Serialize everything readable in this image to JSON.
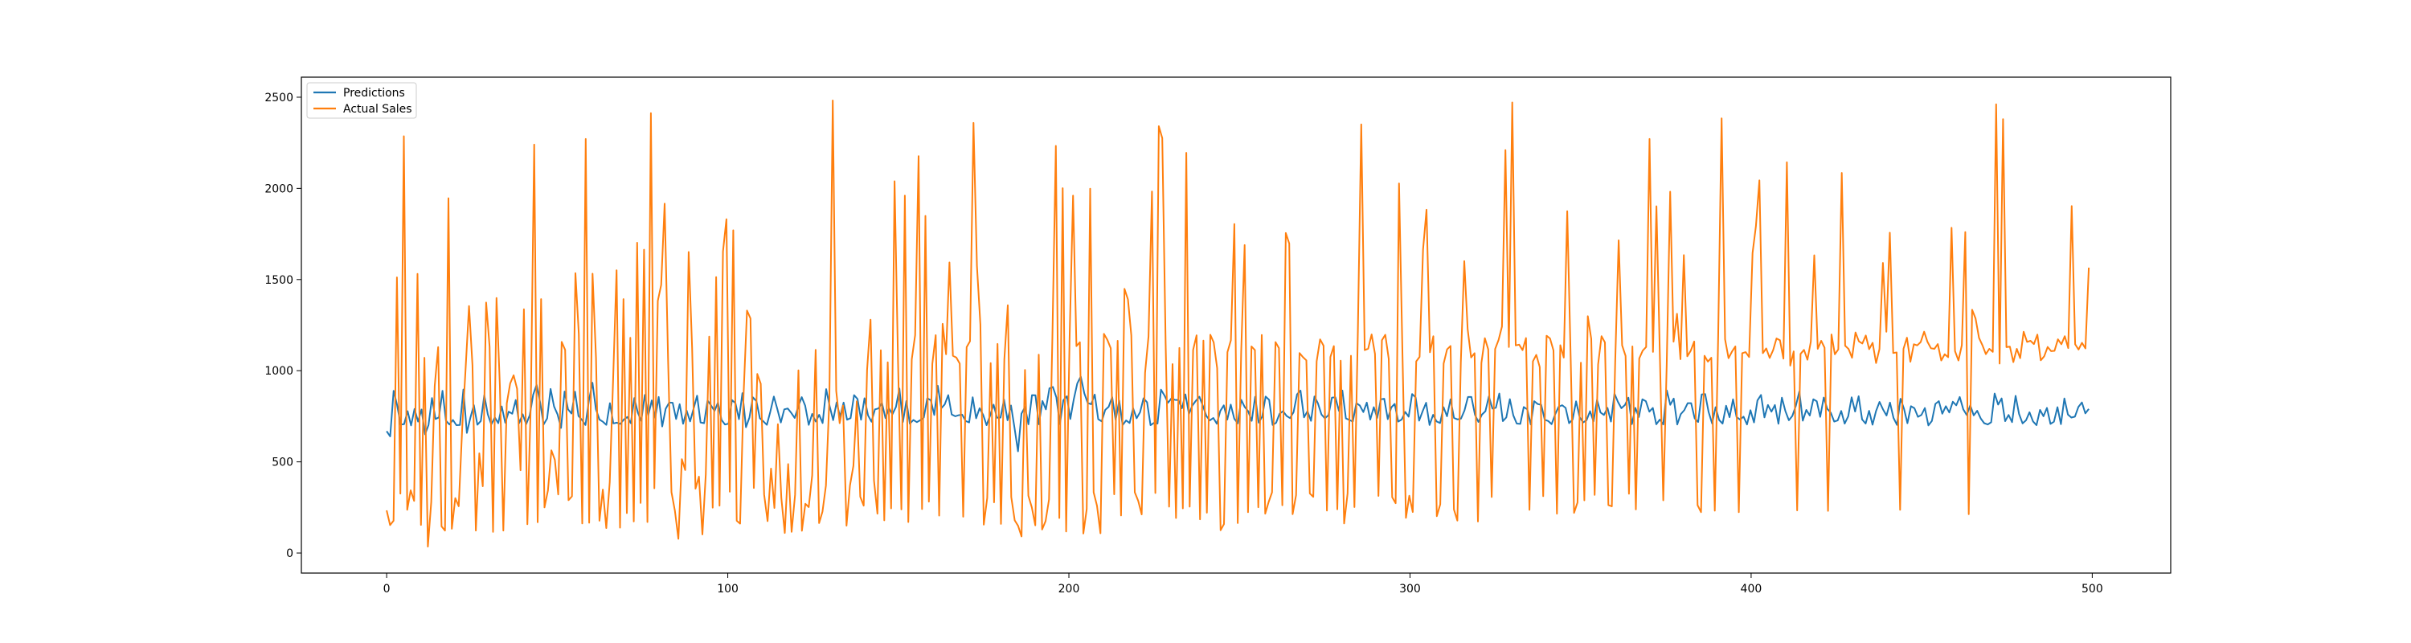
{
  "chart_data": {
    "type": "line",
    "title": "",
    "xlabel": "",
    "ylabel": "",
    "xlim": [
      -25,
      523
    ],
    "ylim": [
      -110,
      2610
    ],
    "xticks": [
      0,
      100,
      200,
      300,
      400,
      500
    ],
    "yticks": [
      0,
      500,
      1000,
      1500,
      2000,
      2500
    ],
    "grid": false,
    "legend": {
      "placement": "top-left",
      "entries": [
        "Predictions",
        "Actual Sales"
      ]
    },
    "colors": {
      "Predictions": "#1f77b4",
      "Actual Sales": "#ff7f0e"
    },
    "x_range": [
      0,
      499
    ],
    "series": [
      {
        "name": "Predictions",
        "values": [
          668,
          640,
          890,
          812,
          705,
          707,
          778,
          700,
          790,
          721,
          787,
          651,
          702,
          850,
          735,
          744,
          890,
          726,
          705,
          730,
          701,
          702,
          897,
          659,
          742,
          811,
          704,
          724,
          865,
          760,
          705,
          744,
          712,
          804,
          715,
          775,
          764,
          839,
          712,
          761,
          707,
          755,
          868,
          923,
          826,
          705,
          738,
          900,
          804,
          760,
          686,
          886,
          788,
          765,
          885,
          752,
          730,
          702,
          837,
          934,
          789,
          732,
          720,
          703,
          822,
          711,
          715,
          708,
          732,
          746,
          712,
          850,
          771,
          725,
          867,
          755,
          837,
          742,
          856,
          694,
          791,
          825,
          824,
          735,
          816,
          709,
          781,
          722,
          793,
          863,
          716,
          712,
          837,
          809,
          779,
          826,
          730,
          705,
          709,
          839,
          822,
          734,
          877,
          690,
          743,
          854,
          833,
          739,
          722,
          703,
          775,
          858,
          790,
          716,
          788,
          793,
          768,
          741,
          804,
          855,
          808,
          703,
          763,
          721,
          758,
          713,
          899,
          806,
          729,
          826,
          747,
          825,
          731,
          740,
          866,
          845,
          731,
          849,
          755,
          720,
          788,
          793,
          823,
          740,
          794,
          761,
          801,
          902,
          719,
          834,
          709,
          730,
          718,
          729,
          743,
          849,
          838,
          757,
          917,
          794,
          815,
          866,
          760,
          750,
          756,
          759,
          724,
          716,
          854,
          739,
          794,
          758,
          701,
          754,
          814,
          742,
          743,
          842,
          728,
          809,
          688,
          558,
          764,
          801,
          706,
          866,
          865,
          706,
          834,
          788,
          903,
          911,
          854,
          707,
          838,
          860,
          735,
          843,
          931,
          968,
          876,
          823,
          816,
          869,
          734,
          722,
          785,
          802,
          855,
          730,
          836,
          702,
          727,
          713,
          794,
          739,
          772,
          849,
          827,
          701,
          714,
          710,
          896,
          864,
          824,
          849,
          840,
          839,
          794,
          870,
          763,
          809,
          835,
          857,
          808,
          752,
          727,
          741,
          709,
          779,
          810,
          732,
          814,
          737,
          711,
          840,
          801,
          778,
          725,
          857,
          715,
          748,
          858,
          840,
          702,
          715,
          764,
          778,
          752,
          740,
          773,
          870,
          891,
          744,
          778,
          725,
          859,
          821,
          760,
          739,
          756,
          852,
          854,
          780,
          891,
          738,
          730,
          721,
          822,
          809,
          773,
          825,
          732,
          800,
          741,
          843,
          846,
          734,
          798,
          818,
          721,
          732,
          774,
          748,
          872,
          853,
          726,
          778,
          824,
          702,
          758,
          722,
          713,
          800,
          750,
          843,
          741,
          733,
          737,
          781,
          856,
          856,
          758,
          719,
          759,
          778,
          859,
          792,
          797,
          875,
          723,
          744,
          844,
          755,
          710,
          708,
          801,
          788,
          705,
          833,
          817,
          813,
          731,
          724,
          707,
          761,
          802,
          811,
          796,
          712,
          732,
          832,
          746,
          716,
          728,
          778,
          722,
          840,
          771,
          757,
          796,
          721,
          874,
          829,
          794,
          812,
          852,
          707,
          796,
          746,
          843,
          833,
          775,
          796,
          706,
          732,
          705,
          892,
          813,
          847,
          705,
          761,
          783,
          822,
          822,
          738,
          719,
          870,
          872,
          774,
          711,
          800,
          730,
          710,
          808,
          745,
          843,
          746,
          732,
          748,
          705,
          783,
          716,
          837,
          867,
          744,
          812,
          775,
          812,
          709,
          852,
          779,
          728,
          752,
          808,
          886,
          726,
          785,
          754,
          843,
          832,
          747,
          853,
          791,
          770,
          721,
          727,
          779,
          710,
          749,
          854,
          776,
          860,
          733,
          710,
          780,
          704,
          779,
          829,
          787,
          754,
          825,
          741,
          703,
          846,
          792,
          712,
          805,
          794,
          747,
          757,
          795,
          700,
          724,
          818,
          833,
          764,
          805,
          771,
          830,
          810,
          856,
          788,
          757,
          810,
          755,
          780,
          738,
          712,
          705,
          717,
          875,
          814,
          848,
          723,
          757,
          718,
          862,
          763,
          711,
          728,
          772,
          722,
          701,
          785,
          750,
          796,
          708,
          720,
          800,
          707,
          848,
          760,
          743,
          748,
          801,
          826,
          766,
          790
        ]
      },
      {
        "name": "Actual Sales",
        "values": [
          234,
          153,
          177,
          1512,
          326,
          2286,
          237,
          344,
          286,
          1531,
          154,
          1071,
          35,
          280,
          916,
          1129,
          146,
          123,
          1946,
          133,
          301,
          257,
          684,
          1007,
          1355,
          1030,
          123,
          547,
          366,
          1374,
          1132,
          116,
          1399,
          916,
          123,
          821,
          930,
          975,
          901,
          454,
          1337,
          158,
          822,
          2240,
          169,
          1393,
          250,
          343,
          563,
          511,
          321,
          1158,
          1114,
          290,
          311,
          1535,
          1202,
          162,
          2271,
          166,
          1532,
          1072,
          177,
          348,
          137,
          389,
          952,
          1551,
          139,
          1393,
          219,
          1181,
          173,
          1702,
          275,
          1664,
          170,
          2413,
          355,
          1383,
          1470,
          1916,
          1059,
          334,
          231,
          78,
          515,
          455,
          1651,
          1125,
          353,
          419,
          102,
          431,
          1187,
          249,
          1513,
          260,
          1654,
          1831,
          336,
          1770,
          177,
          161,
          865,
          1330,
          1287,
          357,
          982,
          928,
          321,
          175,
          463,
          247,
          707,
          302,
          110,
          488,
          116,
          319,
          1002,
          122,
          270,
          252,
          426,
          1114,
          164,
          227,
          370,
          848,
          2482,
          889,
          712,
          809,
          150,
          370,
          478,
          832,
          309,
          260,
          1004,
          1280,
          398,
          216,
          1112,
          179,
          1046,
          245,
          2039,
          1052,
          239,
          1960,
          170,
          1062,
          1195,
          2177,
          241,
          1849,
          282,
          1038,
          1195,
          205,
          1257,
          1090,
          1594,
          1082,
          1072,
          1039,
          199,
          1129,
          1162,
          2359,
          1575,
          1253,
          156,
          302,
          1042,
          278,
          1147,
          160,
          1062,
          1359,
          307,
          179,
          149,
          91,
          1004,
          314,
          250,
          152,
          1088,
          129,
          175,
          294,
          1187,
          2233,
          192,
          2001,
          118,
          1180,
          1960,
          1135,
          1156,
          107,
          241,
          1998,
          333,
          259,
          108,
          1202,
          1169,
          1123,
          322,
          1164,
          206,
          1449,
          1391,
          1193,
          333,
          286,
          212,
          988,
          1188,
          1983,
          329,
          2341,
          2276,
          1150,
          254,
          1036,
          192,
          1125,
          245,
          2195,
          254,
          1114,
          1194,
          185,
          1165,
          221,
          1197,
          1155,
          1014,
          125,
          159,
          1102,
          1167,
          1804,
          164,
          1104,
          1689,
          224,
          1133,
          1113,
          251,
          1196,
          216,
          280,
          333,
          1157,
          1124,
          262,
          1755,
          1698,
          213,
          317,
          1097,
          1074,
          1057,
          327,
          308,
          1051,
          1172,
          1137,
          233,
          1075,
          1135,
          240,
          1055,
          162,
          327,
          1082,
          252,
          1220,
          2351,
          1113,
          1121,
          1199,
          1092,
          313,
          1167,
          1197,
          1065,
          306,
          273,
          2027,
          1088,
          193,
          314,
          225,
          1051,
          1076,
          1665,
          1883,
          1101,
          1189,
          202,
          267,
          1039,
          1117,
          1136,
          239,
          178,
          1046,
          1601,
          1228,
          1073,
          1096,
          173,
          1042,
          1178,
          1117,
          307,
          1119,
          1169,
          1242,
          2210,
          1130,
          2471,
          1139,
          1143,
          1113,
          1179,
          237,
          1051,
          1087,
          1020,
          312,
          1192,
          1177,
          1111,
          216,
          1140,
          1072,
          1875,
          1087,
          220,
          277,
          1044,
          289,
          1299,
          1174,
          319,
          1034,
          1189,
          1155,
          263,
          256,
          1051,
          1715,
          1139,
          1081,
          325,
          1133,
          239,
          1067,
          1110,
          1130,
          2271,
          1103,
          1902,
          1077,
          289,
          1035,
          1982,
          1159,
          1312,
          1063,
          1634,
          1079,
          1110,
          1160,
          262,
          224,
          1082,
          1050,
          1071,
          232,
          1186,
          2384,
          1172,
          1069,
          1104,
          1133,
          224,
          1096,
          1102,
          1075,
          1646,
          1793,
          2044,
          1096,
          1122,
          1070,
          1113,
          1177,
          1167,
          1066,
          2143,
          1028,
          1106,
          234,
          1092,
          1114,
          1060,
          1159,
          1633,
          1120,
          1164,
          1126,
          231,
          1199,
          1090,
          1117,
          2085,
          1137,
          1119,
          1071,
          1210,
          1161,
          1149,
          1193,
          1118,
          1153,
          1042,
          1118,
          1591,
          1214,
          1757,
          1097,
          1100,
          237,
          1120,
          1181,
          1049,
          1145,
          1139,
          1157,
          1214,
          1158,
          1123,
          1120,
          1146,
          1056,
          1090,
          1074,
          1784,
          1107,
          1056,
          1140,
          1760,
          213,
          1334,
          1286,
          1180,
          1139,
          1091,
          1120,
          1103,
          2461,
          1039,
          2380,
          1129,
          1132,
          1047,
          1120,
          1069,
          1214,
          1158,
          1164,
          1146,
          1198,
          1057,
          1079,
          1130,
          1107,
          1109,
          1172,
          1145,
          1189,
          1124,
          1903,
          1145,
          1116,
          1153,
          1122,
          1565
        ]
      }
    ]
  }
}
